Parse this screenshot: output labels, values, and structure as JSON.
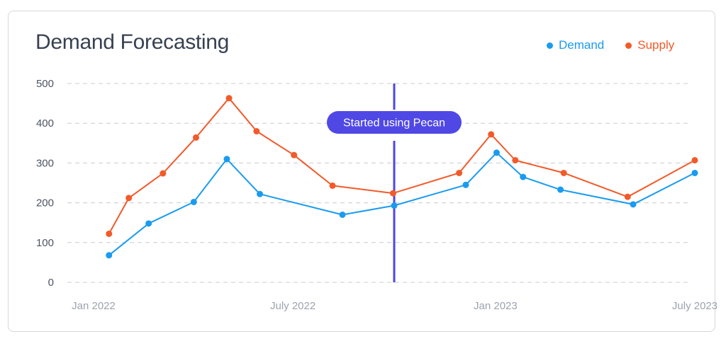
{
  "title": "Demand Forecasting",
  "legend": [
    {
      "label": "Demand",
      "color": "#1a9bf0"
    },
    {
      "label": "Supply",
      "color": "#f25a29"
    }
  ],
  "chart_data": {
    "type": "line",
    "title": "Demand Forecasting",
    "x_axis_type": "date",
    "x_tick_labels": [
      {
        "label": "Jan 2022",
        "x": "2022-01-01"
      },
      {
        "label": "July 2022",
        "x": "2022-07-01"
      },
      {
        "label": "Jan 2023",
        "x": "2023-01-01"
      },
      {
        "label": "July 2023",
        "x": "2023-07-01"
      }
    ],
    "xlim": [
      "2022-01-01",
      "2023-07-01"
    ],
    "ylim": [
      0,
      500
    ],
    "y_ticks": [
      0,
      100,
      200,
      300,
      400,
      500
    ],
    "grid": true,
    "legend_position": "top-right",
    "series": [
      {
        "name": "Demand",
        "color": "#1a9bf0",
        "points": [
          {
            "x": "2022-01-15",
            "y": 68
          },
          {
            "x": "2022-02-20",
            "y": 148
          },
          {
            "x": "2022-04-02",
            "y": 202
          },
          {
            "x": "2022-05-02",
            "y": 310
          },
          {
            "x": "2022-06-01",
            "y": 222
          },
          {
            "x": "2022-08-15",
            "y": 170
          },
          {
            "x": "2022-10-01",
            "y": 193
          },
          {
            "x": "2022-12-05",
            "y": 245
          },
          {
            "x": "2023-01-02",
            "y": 326
          },
          {
            "x": "2023-01-26",
            "y": 265
          },
          {
            "x": "2023-03-01",
            "y": 233
          },
          {
            "x": "2023-05-06",
            "y": 196
          },
          {
            "x": "2023-07-01",
            "y": 275
          }
        ]
      },
      {
        "name": "Supply",
        "color": "#f25a29",
        "points": [
          {
            "x": "2022-01-15",
            "y": 122
          },
          {
            "x": "2022-02-02",
            "y": 212
          },
          {
            "x": "2022-03-05",
            "y": 274
          },
          {
            "x": "2022-04-04",
            "y": 364
          },
          {
            "x": "2022-05-04",
            "y": 463
          },
          {
            "x": "2022-05-29",
            "y": 380
          },
          {
            "x": "2022-07-02",
            "y": 320
          },
          {
            "x": "2022-08-06",
            "y": 243
          },
          {
            "x": "2022-09-30",
            "y": 224
          },
          {
            "x": "2022-11-29",
            "y": 275
          },
          {
            "x": "2022-12-28",
            "y": 372
          },
          {
            "x": "2023-01-19",
            "y": 307
          },
          {
            "x": "2023-03-04",
            "y": 275
          },
          {
            "x": "2023-05-01",
            "y": 215
          },
          {
            "x": "2023-07-01",
            "y": 307
          }
        ]
      }
    ],
    "annotations": [
      {
        "type": "vertical-line",
        "x": "2022-10-01",
        "label": "Started using Pecan",
        "color": "#4f46e5"
      }
    ]
  }
}
